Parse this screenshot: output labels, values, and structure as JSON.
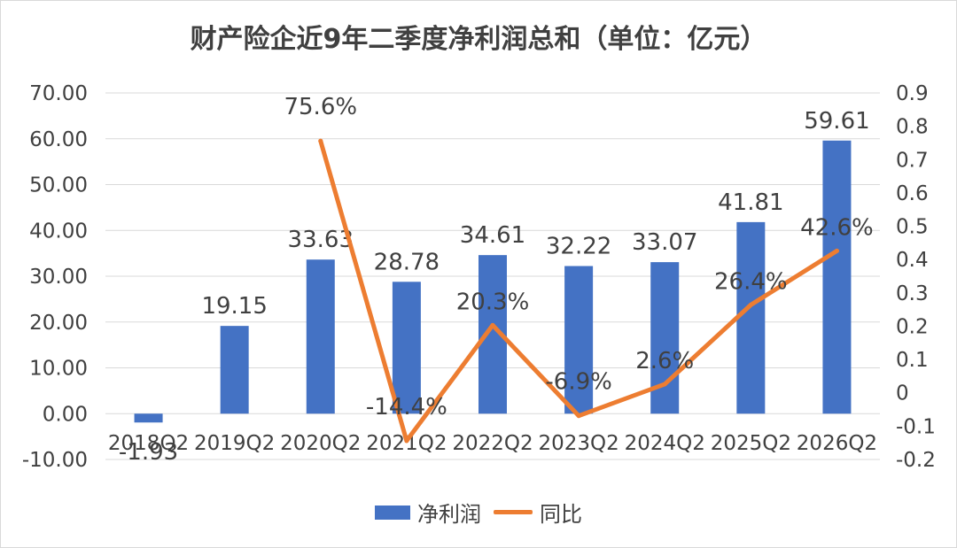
{
  "title": "财产险企近9年二季度净利润总和（单位：亿元）",
  "legend": {
    "bar_label": "净利润",
    "line_label": "同比"
  },
  "colors": {
    "bar": "#4472c4",
    "line": "#ed7d31",
    "grid": "#d9d9d9",
    "text": "#404040"
  },
  "chart_data": {
    "type": "bar",
    "title": "财产险企近9年二季度净利润总和（单位：亿元）",
    "categories": [
      "2018Q2",
      "2019Q2",
      "2020Q2",
      "2021Q2",
      "2022Q2",
      "2023Q2",
      "2024Q2",
      "2025Q2",
      "2026Q2"
    ],
    "series": [
      {
        "name": "净利润",
        "type": "bar",
        "axis": "left",
        "values": [
          -1.93,
          19.15,
          33.63,
          28.78,
          34.61,
          32.22,
          33.07,
          41.81,
          59.61
        ],
        "labels": [
          "-1.93",
          "19.15",
          "33.63",
          "28.78",
          "34.61",
          "32.22",
          "33.07",
          "41.81",
          "59.61"
        ]
      },
      {
        "name": "同比",
        "type": "line",
        "axis": "right",
        "values": [
          null,
          null,
          0.756,
          -0.144,
          0.203,
          -0.069,
          0.026,
          0.264,
          0.426
        ],
        "labels": [
          "",
          "",
          "75.6%",
          "-14.4%",
          "20.3%",
          "-6.9%",
          "2.6%",
          "26.4%",
          "42.6%"
        ]
      }
    ],
    "y_left": {
      "min": -10,
      "max": 70,
      "step": 10,
      "tick_labels": [
        "-10.00",
        "0.00",
        "10.00",
        "20.00",
        "30.00",
        "40.00",
        "50.00",
        "60.00",
        "70.00"
      ]
    },
    "y_right": {
      "min": -0.2,
      "max": 0.9,
      "step": 0.1,
      "tick_labels": [
        "-0.2",
        "-0.1",
        "0",
        "0.1",
        "0.2",
        "0.3",
        "0.4",
        "0.5",
        "0.6",
        "0.7",
        "0.8",
        "0.9"
      ]
    },
    "grid": true,
    "legend_position": "bottom"
  }
}
